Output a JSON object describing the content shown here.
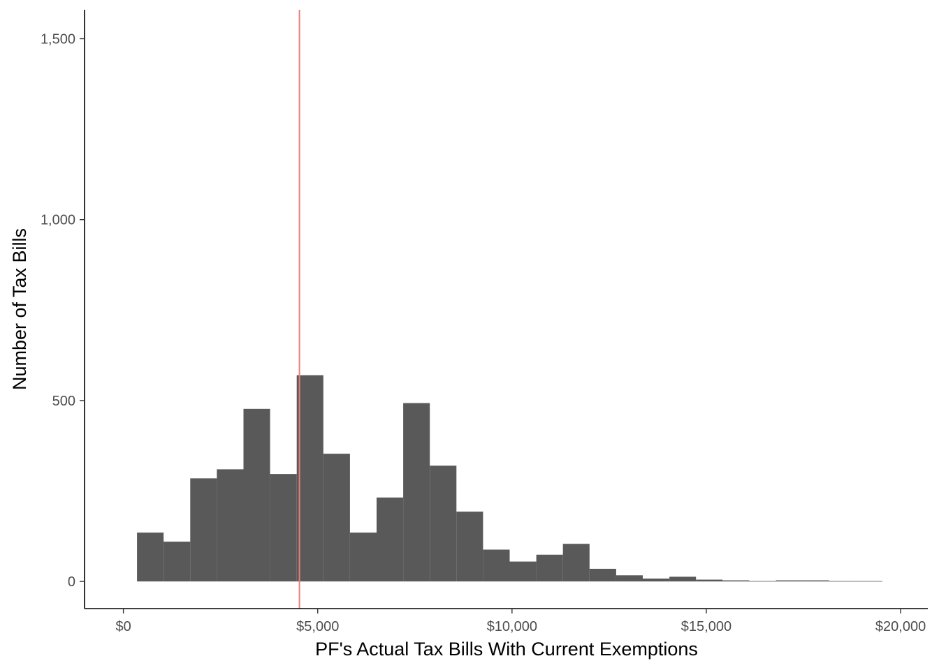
{
  "chart_data": {
    "type": "histogram",
    "title": "",
    "xlabel": "PF's Actual Tax Bills With Current Exemptions",
    "ylabel": "Number of Tax Bills",
    "xlim": [
      -1000,
      20700
    ],
    "ylim": [
      -75,
      1580
    ],
    "bin_width": 685,
    "bins": [
      {
        "start": 350,
        "end": 1035,
        "count": 135
      },
      {
        "start": 1035,
        "end": 1720,
        "count": 110
      },
      {
        "start": 1720,
        "end": 2405,
        "count": 285
      },
      {
        "start": 2405,
        "end": 3090,
        "count": 310
      },
      {
        "start": 3090,
        "end": 3775,
        "count": 477
      },
      {
        "start": 3775,
        "end": 4460,
        "count": 297
      },
      {
        "start": 4460,
        "end": 5145,
        "count": 570
      },
      {
        "start": 5145,
        "end": 5830,
        "count": 353
      },
      {
        "start": 5830,
        "end": 6515,
        "count": 135
      },
      {
        "start": 6515,
        "end": 7200,
        "count": 232
      },
      {
        "start": 7200,
        "end": 7885,
        "count": 493
      },
      {
        "start": 7885,
        "end": 8570,
        "count": 320
      },
      {
        "start": 8570,
        "end": 9255,
        "count": 193
      },
      {
        "start": 9255,
        "end": 9940,
        "count": 88
      },
      {
        "start": 9940,
        "end": 10625,
        "count": 55
      },
      {
        "start": 10625,
        "end": 11310,
        "count": 74
      },
      {
        "start": 11310,
        "end": 11995,
        "count": 104
      },
      {
        "start": 11995,
        "end": 12680,
        "count": 35
      },
      {
        "start": 12680,
        "end": 13365,
        "count": 17
      },
      {
        "start": 13365,
        "end": 14050,
        "count": 8
      },
      {
        "start": 14050,
        "end": 14735,
        "count": 13
      },
      {
        "start": 14735,
        "end": 15420,
        "count": 5
      },
      {
        "start": 15420,
        "end": 16105,
        "count": 3
      },
      {
        "start": 16105,
        "end": 16790,
        "count": 1
      },
      {
        "start": 16790,
        "end": 17475,
        "count": 3
      },
      {
        "start": 17475,
        "end": 18160,
        "count": 3
      },
      {
        "start": 18160,
        "end": 18845,
        "count": 1
      },
      {
        "start": 18845,
        "end": 19530,
        "count": 1
      }
    ],
    "reference_line": {
      "x": 4530,
      "color": "#e8807a"
    },
    "bar_color": "#595959",
    "x_ticks": [
      {
        "value": 0,
        "label": "$0"
      },
      {
        "value": 5000,
        "label": "$5,000"
      },
      {
        "value": 10000,
        "label": "$10,000"
      },
      {
        "value": 15000,
        "label": "$15,000"
      },
      {
        "value": 20000,
        "label": "$20,000"
      }
    ],
    "y_ticks": [
      {
        "value": 0,
        "label": "0"
      },
      {
        "value": 500,
        "label": "500"
      },
      {
        "value": 1000,
        "label": "1,000"
      },
      {
        "value": 1500,
        "label": "1,500"
      }
    ],
    "grid": false,
    "legend": "none"
  }
}
